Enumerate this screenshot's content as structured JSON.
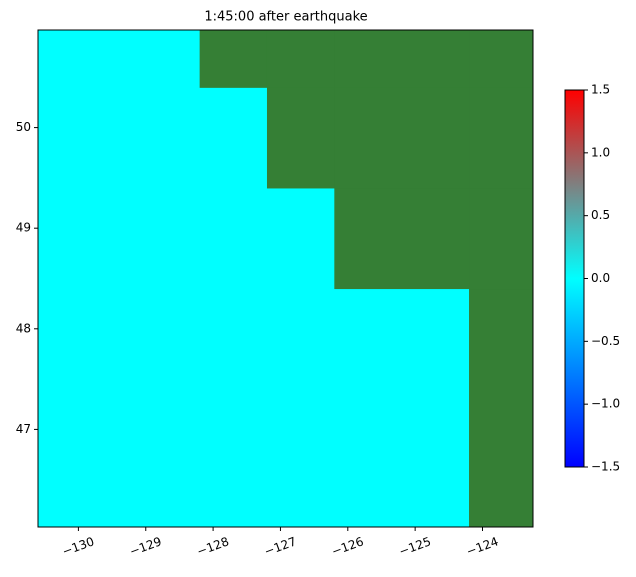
{
  "chart_data": {
    "type": "heatmap",
    "title": "1:45:00 after earthquake",
    "x_edges": [
      -130.6,
      -128.2,
      -127.2,
      -126.2,
      -124.2,
      -123.25
    ],
    "y_edges": [
      46.03,
      48.4,
      49.4,
      50.4,
      50.97
    ],
    "values": [
      [
        0,
        0,
        0,
        0,
        null
      ],
      [
        0,
        0,
        0,
        null,
        null
      ],
      [
        0,
        0,
        null,
        null,
        null
      ],
      [
        0,
        null,
        null,
        null,
        null
      ]
    ],
    "mask_color": "#357f35",
    "xlim": [
      -130.6,
      -123.25
    ],
    "ylim": [
      46.03,
      50.97
    ],
    "xticks": [
      {
        "value": -130,
        "label": "−130"
      },
      {
        "value": -129,
        "label": "−129"
      },
      {
        "value": -128,
        "label": "−128"
      },
      {
        "value": -127,
        "label": "−127"
      },
      {
        "value": -126,
        "label": "−126"
      },
      {
        "value": -125,
        "label": "−125"
      },
      {
        "value": -124,
        "label": "−124"
      }
    ],
    "yticks": [
      47,
      48,
      49,
      50
    ],
    "colorbar": {
      "lim": [
        -1.5,
        1.5
      ],
      "colors": [
        "#0000ff",
        "#00ffff",
        "#ff0000"
      ],
      "ticks": [
        {
          "value": -1.5,
          "label": "−1.5"
        },
        {
          "value": -1.0,
          "label": "−1.0"
        },
        {
          "value": -0.5,
          "label": "−0.5"
        },
        {
          "value": 0,
          "label": "0.0"
        },
        {
          "value": 0.5,
          "label": "0.5"
        },
        {
          "value": 1.0,
          "label": "1.0"
        },
        {
          "value": 1.5,
          "label": "1.5"
        }
      ]
    }
  }
}
